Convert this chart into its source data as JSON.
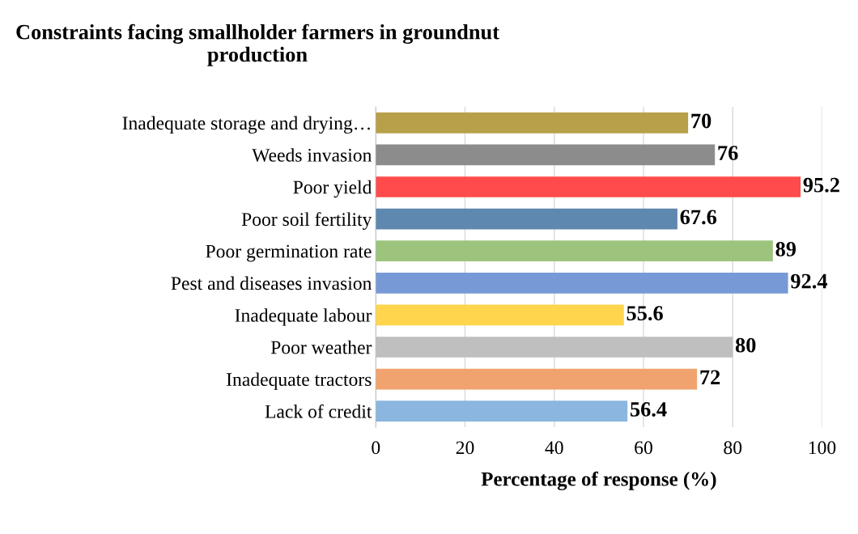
{
  "chart_data": {
    "type": "bar",
    "orientation": "horizontal",
    "title": "Constraints facing smallholder farmers in groundnut\nproduction",
    "xlabel": "Percentage of response (%)",
    "categories": [
      "Inadequate storage and drying…",
      "Weeds invasion",
      "Poor yield",
      "Poor soil fertility",
      "Poor germination rate",
      "Pest and diseases invasion",
      "Inadequate labour",
      "Poor weather",
      "Inadequate tractors",
      "Lack of credit"
    ],
    "values": [
      70,
      76,
      95.2,
      67.6,
      89,
      92.4,
      55.6,
      80,
      72,
      56.4
    ],
    "colors": [
      "#b89f4a",
      "#8c8c8c",
      "#ff4b4b",
      "#5f88b0",
      "#9cc47c",
      "#7799d6",
      "#ffd54d",
      "#bfbfbf",
      "#f0a36e",
      "#8ab6e0"
    ],
    "xlim": [
      0,
      100
    ],
    "xticks": [
      0,
      20,
      40,
      60,
      80,
      100
    ],
    "grid": "x",
    "data_labels": true
  }
}
